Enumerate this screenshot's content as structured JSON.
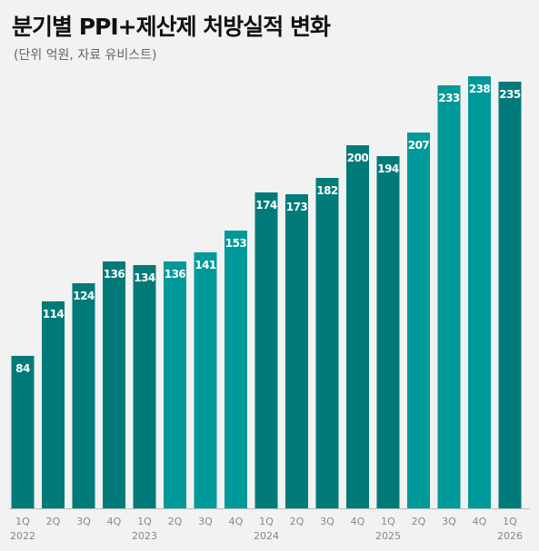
{
  "colors": {
    "bar_dark": "#007b79",
    "bar_light": "#00999a",
    "background": "#f2f2f2",
    "axis": "#bbbbbb"
  },
  "chart_data": {
    "type": "bar",
    "title": "분기별 PPI+제산제 처방실적 변화",
    "subtitle": "(단위 억원, 자료 유비스트)",
    "categories": [
      "1Q",
      "2Q",
      "3Q",
      "4Q",
      "1Q",
      "2Q",
      "3Q",
      "4Q",
      "1Q",
      "2Q",
      "3Q",
      "4Q",
      "1Q",
      "2Q",
      "3Q",
      "4Q",
      "1Q"
    ],
    "years": [
      "2022",
      "",
      "",
      "",
      "2023",
      "",
      "",
      "",
      "2024",
      "",
      "",
      "",
      "2025",
      "",
      "",
      "",
      "2026"
    ],
    "values": [
      84,
      114,
      124,
      136,
      134,
      136,
      141,
      153,
      174,
      173,
      182,
      200,
      194,
      207,
      233,
      238,
      235
    ],
    "value_labels": [
      "84",
      "114",
      "124",
      "136",
      "134",
      "136",
      "141",
      "153",
      "174",
      "173",
      "182",
      "200",
      "194",
      "207",
      "233",
      "238",
      "235"
    ],
    "bar_color_pattern": [
      "dark",
      "dark",
      "dark",
      "dark",
      "dark",
      "light",
      "light",
      "light",
      "dark",
      "dark",
      "dark",
      "dark",
      "dark",
      "light",
      "light",
      "light",
      "dark"
    ],
    "ylim": [
      0,
      252
    ],
    "grid": false,
    "legend": "none"
  }
}
